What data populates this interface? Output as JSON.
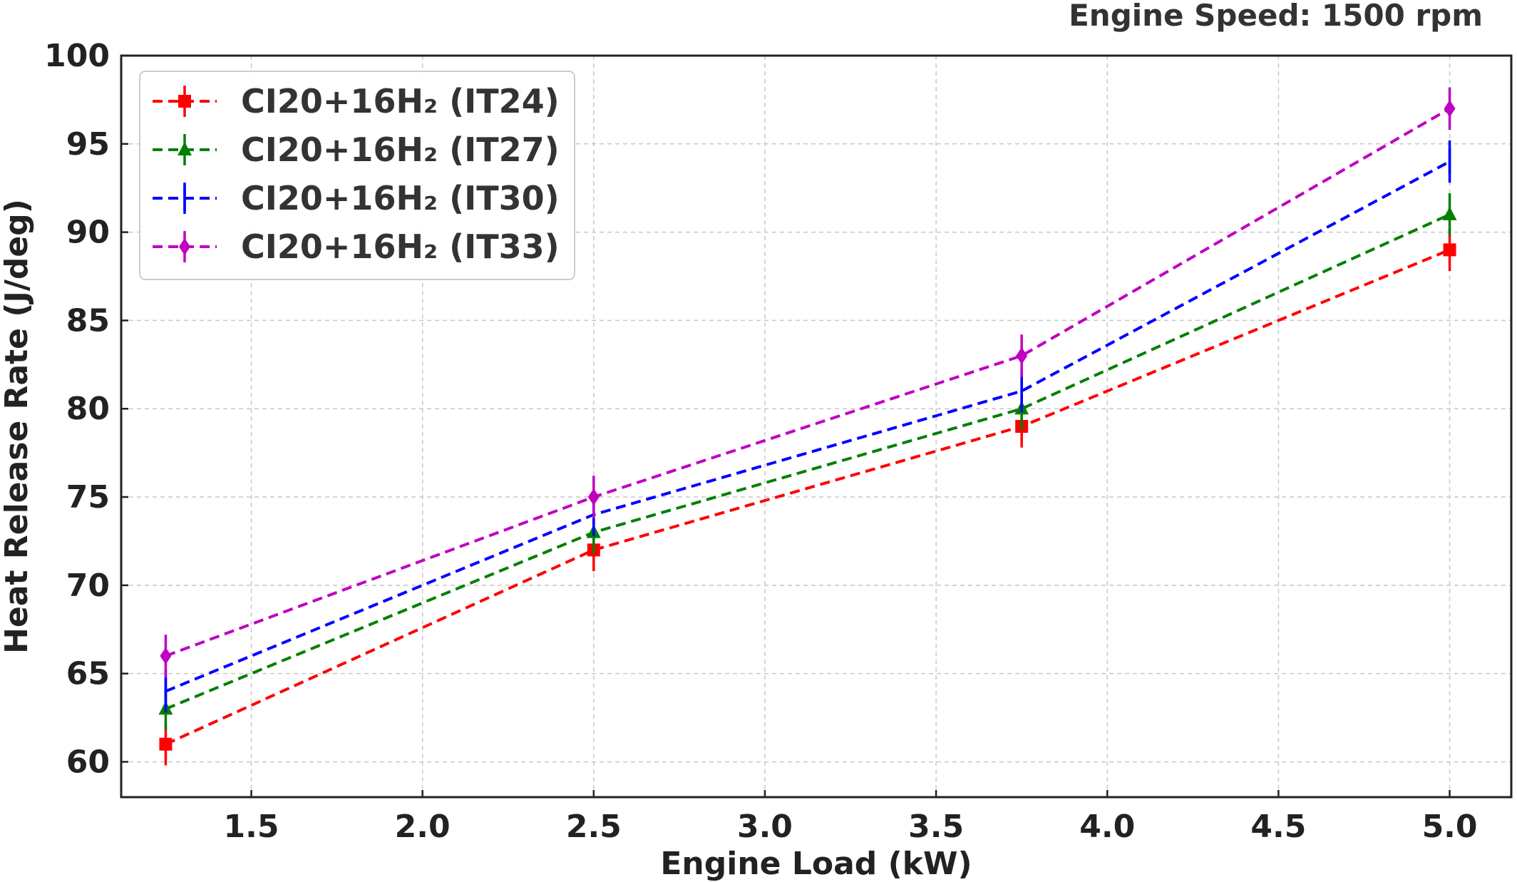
{
  "chart_data": {
    "type": "line",
    "title": "Engine Speed: 1500 rpm",
    "xlabel": "Engine Load (kW)",
    "ylabel": "Heat Release Rate (J/deg)",
    "x": [
      1.25,
      2.5,
      3.75,
      5.0
    ],
    "xlim": [
      1.12,
      5.18
    ],
    "ylim": [
      58.0,
      100.0
    ],
    "xticks": [
      1.5,
      2.0,
      2.5,
      3.0,
      3.5,
      4.0,
      4.5,
      5.0
    ],
    "xtick_labels": [
      "1.5",
      "2.0",
      "2.5",
      "3.0",
      "3.5",
      "4.0",
      "4.5",
      "5.0"
    ],
    "yticks": [
      60,
      65,
      70,
      75,
      80,
      85,
      90,
      95,
      100
    ],
    "ytick_labels": [
      "60",
      "65",
      "70",
      "75",
      "80",
      "85",
      "90",
      "95",
      "100"
    ],
    "grid": true,
    "legend_position": "top-left",
    "series": [
      {
        "name": "CI20+16H₂ (IT24)",
        "color": "#ff0000",
        "marker": "square",
        "values": [
          61,
          72,
          79,
          89
        ],
        "error": [
          1.2,
          1.2,
          1.2,
          1.2
        ]
      },
      {
        "name": "CI20+16H₂ (IT27)",
        "color": "#008000",
        "marker": "triangle",
        "values": [
          63,
          73,
          80,
          91
        ],
        "error": [
          1.2,
          1.2,
          1.2,
          1.2
        ]
      },
      {
        "name": "CI20+16H₂ (IT30)",
        "color": "#0000ff",
        "marker": "vline",
        "values": [
          64,
          74,
          81,
          94
        ],
        "error": [
          1.2,
          1.2,
          1.2,
          1.2
        ]
      },
      {
        "name": "CI20+16H₂ (IT33)",
        "color": "#c000c0",
        "marker": "diamond",
        "values": [
          66,
          75,
          83,
          97
        ],
        "error": [
          1.2,
          1.2,
          1.2,
          1.2
        ]
      }
    ]
  }
}
